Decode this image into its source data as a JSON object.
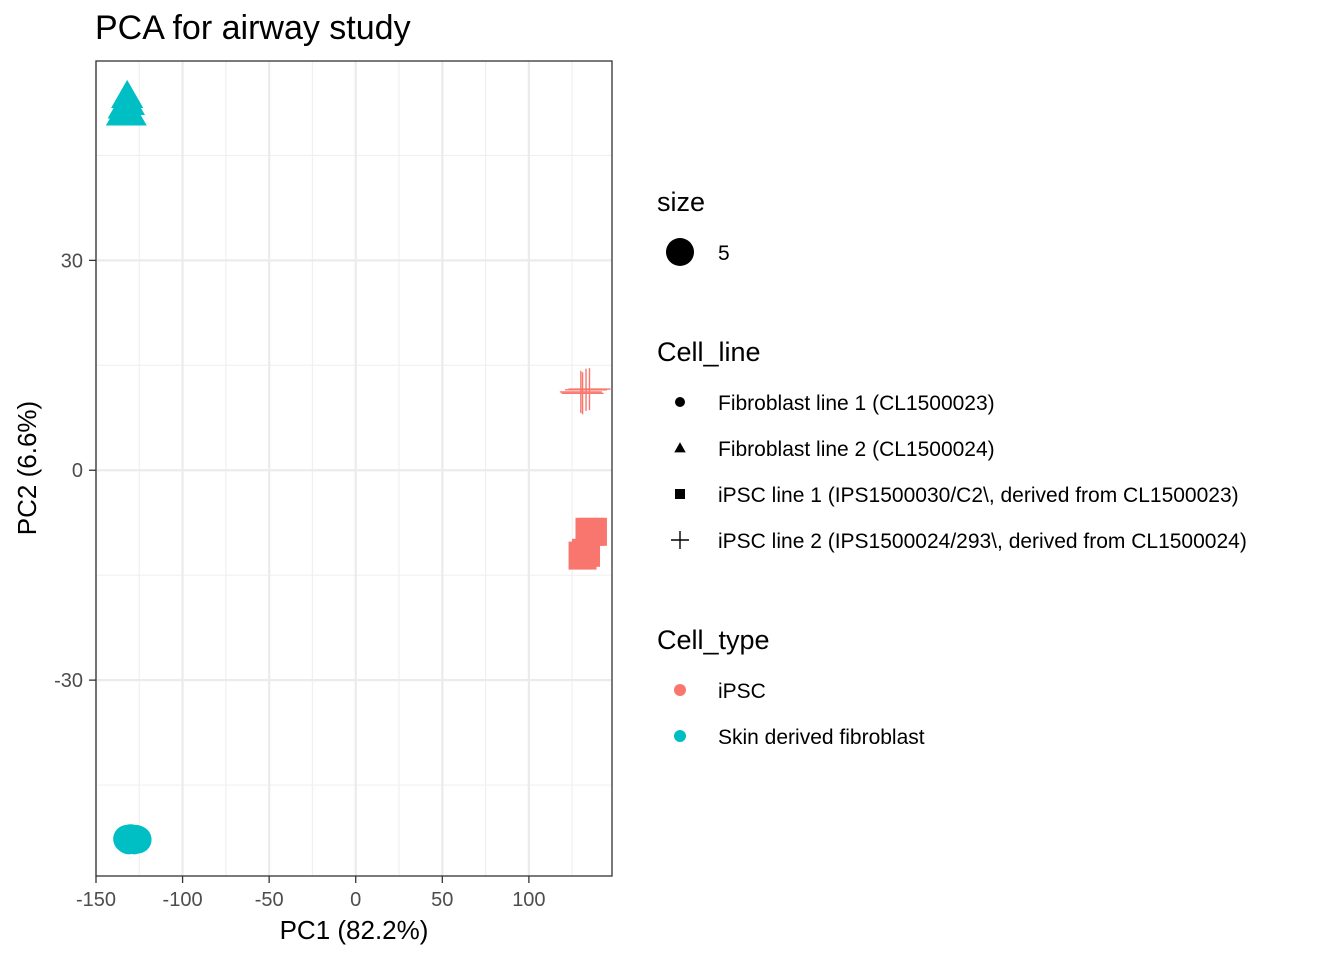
{
  "chart_data": {
    "type": "scatter",
    "title": "PCA for airway study",
    "xlabel": "PC1 (82.2%)",
    "ylabel": "PC2 (6.6%)",
    "xlim": [
      -150,
      148
    ],
    "ylim": [
      -58,
      58.5
    ],
    "xticks": [
      -150,
      -100,
      -50,
      0,
      50,
      100
    ],
    "yticks": [
      -30,
      0,
      30
    ],
    "grid": true,
    "legend_position": "right",
    "legends": [
      {
        "title": "size",
        "kind": "size",
        "entries": [
          {
            "label": "5"
          }
        ]
      },
      {
        "title": "Cell_line",
        "kind": "shape",
        "entries": [
          {
            "label": "Fibroblast line 1 (CL1500023)",
            "shape": "circle"
          },
          {
            "label": "Fibroblast line 2 (CL1500024)",
            "shape": "triangle"
          },
          {
            "label": "iPSC line 1 (IPS1500030/C2\\, derived from CL1500023)",
            "shape": "square"
          },
          {
            "label": "iPSC line 2 (IPS1500024/293\\, derived from CL1500024)",
            "shape": "plus"
          }
        ]
      },
      {
        "title": "Cell_type",
        "kind": "color",
        "entries": [
          {
            "label": "iPSC",
            "color": "#F8766D"
          },
          {
            "label": "Skin derived fibroblast",
            "color": "#00BFC4"
          }
        ]
      }
    ],
    "points": [
      {
        "x": -133,
        "y": 51.5,
        "shape": "triangle",
        "color": "#00BFC4"
      },
      {
        "x": -132,
        "y": 53.5,
        "shape": "triangle",
        "color": "#00BFC4"
      },
      {
        "x": -135,
        "y": 51,
        "shape": "triangle",
        "color": "#00BFC4"
      },
      {
        "x": -130,
        "y": 51,
        "shape": "triangle",
        "color": "#00BFC4"
      },
      {
        "x": -131,
        "y": 52.5,
        "shape": "triangle",
        "color": "#00BFC4"
      },
      {
        "x": -134,
        "y": 52,
        "shape": "triangle",
        "color": "#00BFC4"
      },
      {
        "x": -132,
        "y": -52.7,
        "shape": "circle",
        "color": "#00BFC4"
      },
      {
        "x": -128,
        "y": -52.9,
        "shape": "circle",
        "color": "#00BFC4"
      },
      {
        "x": -130,
        "y": -52.6,
        "shape": "circle",
        "color": "#00BFC4"
      },
      {
        "x": -126,
        "y": -52.8,
        "shape": "circle",
        "color": "#00BFC4"
      },
      {
        "x": -131,
        "y": -52.9,
        "shape": "circle",
        "color": "#00BFC4"
      },
      {
        "x": -127,
        "y": -52.7,
        "shape": "circle",
        "color": "#00BFC4"
      },
      {
        "x": 133,
        "y": 11.5,
        "shape": "plus",
        "color": "#F8766D"
      },
      {
        "x": 131,
        "y": 11,
        "shape": "plus",
        "color": "#F8766D"
      },
      {
        "x": 130,
        "y": 11.2,
        "shape": "plus",
        "color": "#F8766D"
      },
      {
        "x": 135,
        "y": 11.6,
        "shape": "plus",
        "color": "#F8766D"
      },
      {
        "x": 137,
        "y": -8.8,
        "shape": "square",
        "color": "#F8766D"
      },
      {
        "x": 135,
        "y": -8.8,
        "shape": "square",
        "color": "#F8766D"
      },
      {
        "x": 133,
        "y": -11.8,
        "shape": "square",
        "color": "#F8766D"
      },
      {
        "x": 131,
        "y": -12.2,
        "shape": "square",
        "color": "#F8766D"
      }
    ]
  }
}
